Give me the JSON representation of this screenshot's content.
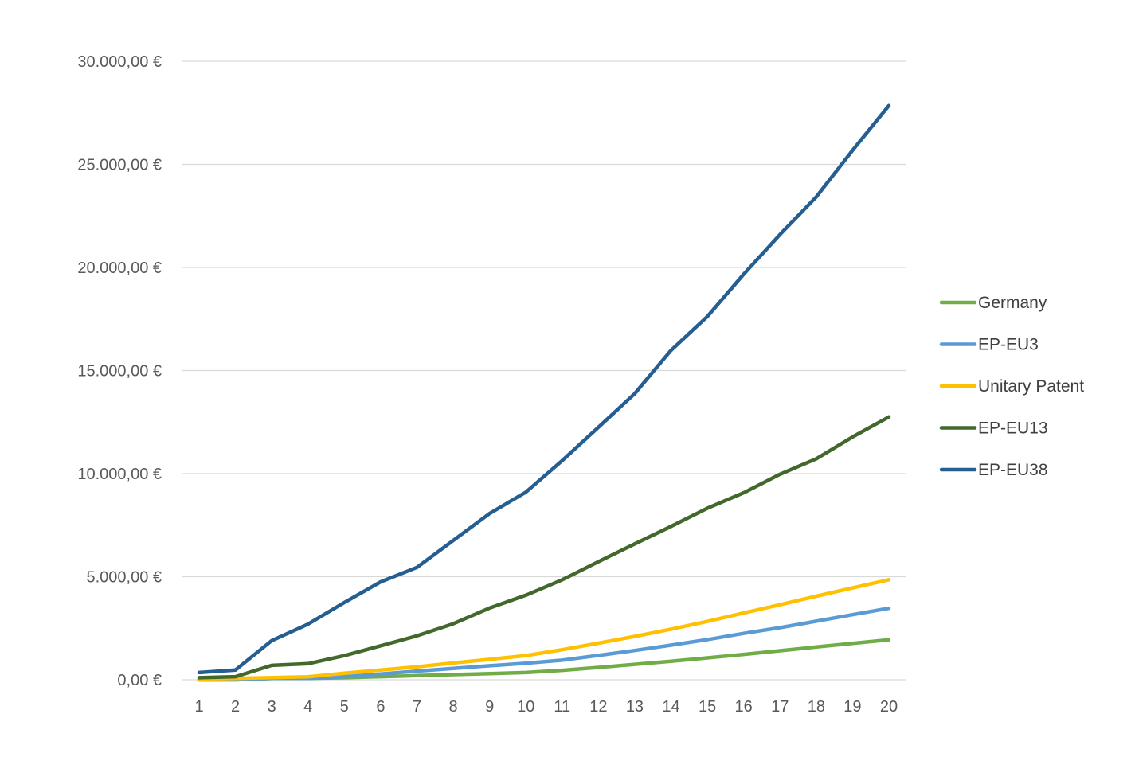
{
  "chart_data": {
    "type": "line",
    "title": "",
    "xlabel": "",
    "ylabel": "",
    "categories": [
      "1",
      "2",
      "3",
      "4",
      "5",
      "6",
      "7",
      "8",
      "9",
      "10",
      "11",
      "12",
      "13",
      "14",
      "15",
      "16",
      "17",
      "18",
      "19",
      "20"
    ],
    "ylim": [
      0,
      30000
    ],
    "y_ticks": [
      0,
      5000,
      10000,
      15000,
      20000,
      25000,
      30000
    ],
    "y_tick_labels": [
      "0,00 €",
      "5.000,00 €",
      "10.000,00 €",
      "15.000,00 €",
      "20.000,00 €",
      "25.000,00 €",
      "30.000,00 €"
    ],
    "grid": "horizontal",
    "legend_position": "right",
    "series": [
      {
        "name": "Germany",
        "color": "#70ad47",
        "values": [
          0,
          0,
          70,
          70,
          100,
          150,
          200,
          250,
          300,
          350,
          460,
          600,
          750,
          900,
          1060,
          1230,
          1410,
          1590,
          1770,
          1940
        ]
      },
      {
        "name": "EP-EU3",
        "color": "#5b9bd5",
        "values": [
          0,
          0,
          70,
          70,
          150,
          280,
          420,
          550,
          680,
          800,
          950,
          1180,
          1420,
          1680,
          1950,
          2250,
          2530,
          2840,
          3160,
          3470
        ]
      },
      {
        "name": "Unitary Patent",
        "color": "#ffc000",
        "values": [
          35,
          70,
          105,
          145,
          315,
          475,
          630,
          815,
          990,
          1175,
          1460,
          1775,
          2105,
          2455,
          2830,
          3240,
          3640,
          4055,
          4455,
          4855
        ]
      },
      {
        "name": "EP-EU13",
        "color": "#43682b",
        "values": [
          100,
          150,
          700,
          780,
          1170,
          1650,
          2130,
          2720,
          3480,
          4100,
          4850,
          5730,
          6590,
          7440,
          8320,
          9070,
          9970,
          10720,
          11780,
          12750
        ]
      },
      {
        "name": "EP-EU38",
        "color": "#255e91",
        "values": [
          350,
          470,
          1900,
          2700,
          3750,
          4750,
          5450,
          6760,
          8060,
          9100,
          10630,
          12250,
          13880,
          15980,
          17620,
          19670,
          21600,
          23420,
          25680,
          27850
        ]
      }
    ]
  }
}
